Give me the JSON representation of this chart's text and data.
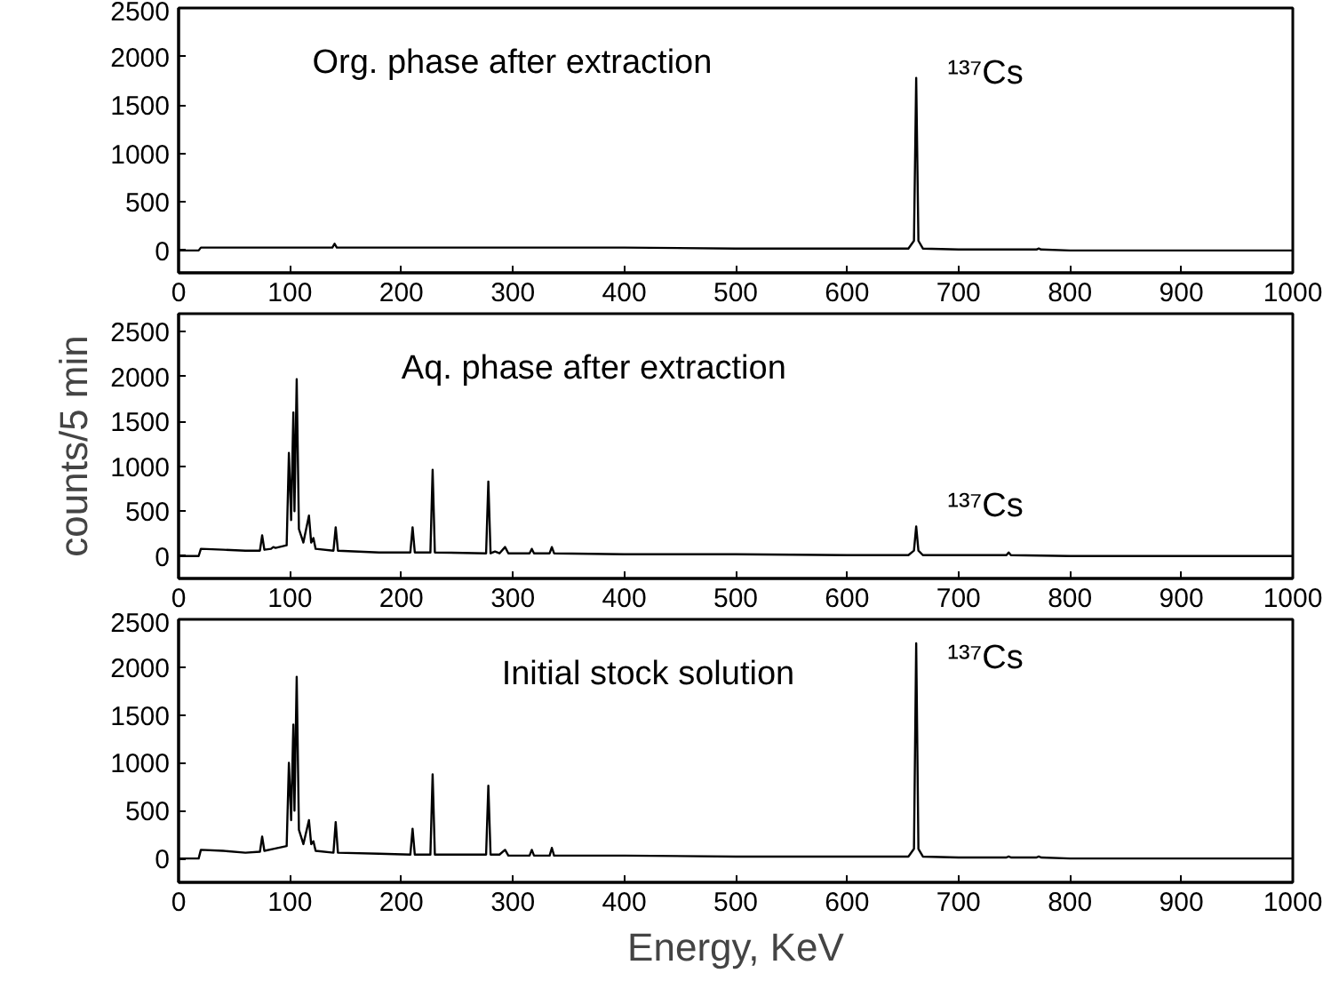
{
  "chart_data": [
    {
      "type": "line",
      "title": "Org. phase after extraction",
      "xlim": [
        0,
        1000
      ],
      "ylim": [
        -230,
        2500
      ],
      "xticks": [
        0,
        100,
        200,
        300,
        400,
        500,
        600,
        700,
        800,
        900,
        1000
      ],
      "yticks": [
        0,
        500,
        1000,
        1500,
        2000,
        2500
      ],
      "grid": false,
      "annotations": [
        "¹³⁷Cs"
      ],
      "series": [
        {
          "color": "#000000",
          "x": [
            0,
            18,
            20,
            60,
            100,
            138,
            140,
            142,
            200,
            300,
            400,
            500,
            600,
            655,
            660,
            662,
            664,
            668,
            700,
            770,
            772,
            774,
            800,
            900,
            1000
          ],
          "values": [
            0,
            0,
            30,
            30,
            30,
            30,
            70,
            30,
            30,
            30,
            30,
            20,
            20,
            20,
            100,
            1780,
            100,
            20,
            10,
            10,
            20,
            10,
            0,
            0,
            0
          ]
        }
      ]
    },
    {
      "type": "line",
      "xlim": [
        0,
        1000
      ],
      "ylim": [
        -250,
        2700
      ],
      "xticks": [
        0,
        100,
        200,
        300,
        400,
        500,
        600,
        700,
        800,
        900,
        1000
      ],
      "yticks": [
        0,
        500,
        1000,
        1500,
        2000,
        2500
      ],
      "ylabel": "counts/5 min",
      "grid": false,
      "title": "Aq. phase after extraction",
      "annotations": [
        "¹³⁷Cs"
      ],
      "series": [
        {
          "color": "#000000",
          "x": [
            0,
            18,
            20,
            40,
            60,
            73,
            75,
            77,
            83,
            85,
            87,
            97,
            99,
            101,
            103,
            104,
            106,
            108,
            112,
            117,
            119,
            121,
            123,
            139,
            141,
            143,
            180,
            208,
            210,
            212,
            226,
            228,
            230,
            276,
            278,
            280,
            284,
            288,
            293,
            296,
            315,
            317,
            319,
            333,
            335,
            337,
            400,
            500,
            600,
            655,
            660,
            662,
            664,
            668,
            700,
            743,
            745,
            747,
            800,
            900,
            1000
          ],
          "values": [
            0,
            0,
            80,
            70,
            60,
            60,
            230,
            70,
            80,
            100,
            90,
            120,
            1150,
            400,
            1600,
            500,
            1970,
            300,
            150,
            450,
            150,
            200,
            80,
            60,
            320,
            60,
            40,
            40,
            320,
            40,
            40,
            960,
            40,
            30,
            830,
            30,
            50,
            30,
            100,
            30,
            30,
            80,
            30,
            30,
            100,
            30,
            20,
            20,
            10,
            10,
            60,
            330,
            60,
            10,
            10,
            10,
            40,
            10,
            0,
            0,
            0
          ]
        }
      ]
    },
    {
      "type": "line",
      "title": "Initial stock solution",
      "xlim": [
        0,
        1000
      ],
      "ylim": [
        -250,
        2500
      ],
      "xticks": [
        0,
        100,
        200,
        300,
        400,
        500,
        600,
        700,
        800,
        900,
        1000
      ],
      "yticks": [
        0,
        500,
        1000,
        1500,
        2000,
        2500
      ],
      "xlabel": "Energy, KeV",
      "grid": false,
      "annotations": [
        "¹³⁷Cs"
      ],
      "series": [
        {
          "color": "#000000",
          "x": [
            0,
            18,
            20,
            40,
            60,
            73,
            75,
            77,
            85,
            97,
            99,
            101,
            103,
            104,
            106,
            108,
            112,
            117,
            119,
            121,
            123,
            139,
            141,
            143,
            180,
            208,
            210,
            212,
            226,
            228,
            230,
            276,
            278,
            280,
            288,
            293,
            296,
            315,
            317,
            319,
            333,
            335,
            337,
            400,
            500,
            600,
            655,
            660,
            662,
            664,
            668,
            700,
            743,
            745,
            747,
            770,
            772,
            774,
            800,
            900,
            1000
          ],
          "values": [
            0,
            0,
            90,
            80,
            60,
            70,
            230,
            80,
            100,
            130,
            1000,
            400,
            1400,
            500,
            1900,
            300,
            150,
            400,
            150,
            180,
            80,
            60,
            380,
            60,
            50,
            40,
            310,
            40,
            40,
            880,
            40,
            40,
            760,
            40,
            40,
            90,
            30,
            30,
            90,
            30,
            30,
            110,
            30,
            30,
            20,
            20,
            20,
            100,
            2250,
            100,
            20,
            10,
            10,
            20,
            10,
            10,
            20,
            10,
            0,
            0,
            0
          ]
        }
      ]
    }
  ]
}
